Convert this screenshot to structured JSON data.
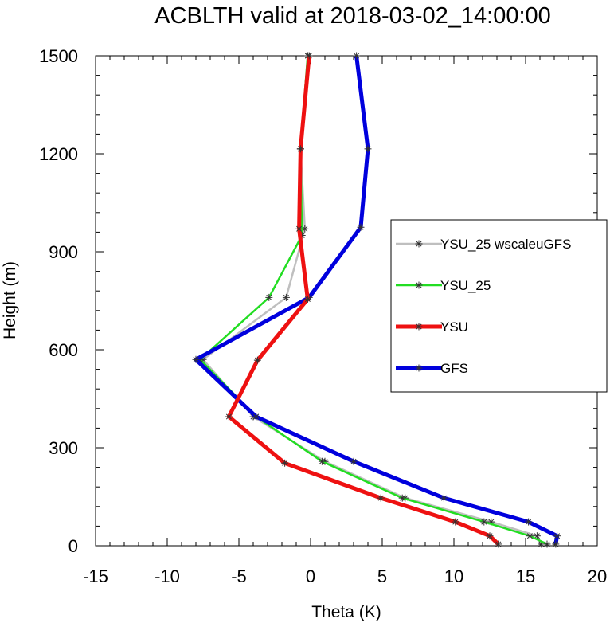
{
  "chart_data": {
    "type": "line",
    "title": "ACBLTH valid at 2018-03-02_14:00:00",
    "xlabel": "Theta (K)",
    "ylabel": "Height (m)",
    "xlim": [
      -15,
      20
    ],
    "ylim": [
      0,
      1500
    ],
    "xticks": [
      -15,
      -10,
      -5,
      0,
      5,
      10,
      15,
      20
    ],
    "yticks": [
      0,
      300,
      600,
      900,
      1200,
      1500
    ],
    "xtick_labels": [
      "-15",
      "-10",
      "-5",
      "0",
      "5",
      "10",
      "15",
      "20"
    ],
    "ytick_labels": [
      "0",
      "300",
      "600",
      "900",
      "1200",
      "1500"
    ],
    "grid": false,
    "legend_position": "right",
    "series": [
      {
        "name": "YSU_25 wscaleuGFS",
        "color": "#bfbfbf",
        "points": [
          [
            16.1,
            5
          ],
          [
            15.8,
            30
          ],
          [
            12.6,
            73
          ],
          [
            6.6,
            146
          ],
          [
            1.0,
            258
          ],
          [
            -4.0,
            395
          ],
          [
            -7.5,
            570
          ],
          [
            -1.7,
            760
          ],
          [
            -0.4,
            970
          ],
          [
            -0.7,
            1215
          ],
          [
            -0.2,
            1500
          ]
        ]
      },
      {
        "name": "YSU_25",
        "color": "#22dd22",
        "points": [
          [
            16.5,
            5
          ],
          [
            15.3,
            30
          ],
          [
            12.1,
            73
          ],
          [
            6.4,
            146
          ],
          [
            0.8,
            258
          ],
          [
            -3.8,
            395
          ],
          [
            -7.7,
            570
          ],
          [
            -2.9,
            760
          ],
          [
            -0.6,
            950
          ],
          [
            -0.7,
            1215
          ],
          [
            -0.2,
            1500
          ]
        ]
      },
      {
        "name": "YSU",
        "color": "#ee1111",
        "points": [
          [
            13.1,
            5
          ],
          [
            12.5,
            30
          ],
          [
            10.1,
            73
          ],
          [
            4.9,
            146
          ],
          [
            -1.8,
            253
          ],
          [
            -5.7,
            395
          ],
          [
            -3.7,
            568
          ],
          [
            -0.2,
            755
          ],
          [
            -0.8,
            970
          ],
          [
            -0.7,
            1215
          ],
          [
            -0.1,
            1500
          ]
        ]
      },
      {
        "name": "GFS",
        "color": "#0000dd",
        "points": [
          [
            17.1,
            5
          ],
          [
            17.2,
            30
          ],
          [
            15.2,
            73
          ],
          [
            9.3,
            146
          ],
          [
            3.0,
            258
          ],
          [
            -3.8,
            395
          ],
          [
            -8.0,
            570
          ],
          [
            -0.1,
            760
          ],
          [
            3.5,
            975
          ],
          [
            4.0,
            1215
          ],
          [
            3.2,
            1500
          ]
        ]
      }
    ]
  }
}
